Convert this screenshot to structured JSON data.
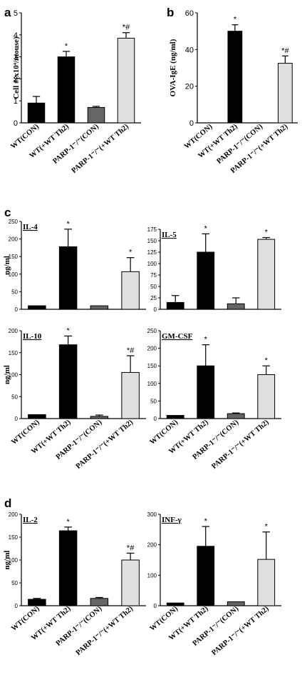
{
  "figure": {
    "panel_labels": [
      "a",
      "b",
      "c",
      "d"
    ]
  },
  "colors": {
    "WT(CON)": "#000000",
    "WT(+WT Th2)": "#000000",
    "PARP-1-/-(CON)": "#666666",
    "PARP-1-/-(+WT Th2)": "#e0e0e0"
  },
  "chart_data": [
    {
      "id": "a",
      "type": "bar",
      "title": "",
      "ylabel": "Cell #(x10⁴/mouse)",
      "xlabel": "",
      "ylim": [
        0,
        5
      ],
      "yticks": [
        0,
        1,
        2,
        3,
        4,
        5
      ],
      "grid": false,
      "legend": "none",
      "categories": [
        "WT(CON)",
        "WT(+WT Th2)",
        "PARP-1⁻/⁻(CON)",
        "PARP-1⁻/⁻(+WT Th2)"
      ],
      "values": [
        0.9,
        3.0,
        0.7,
        3.85
      ],
      "errors": [
        0.3,
        0.25,
        0.05,
        0.25
      ],
      "annotations": [
        "",
        "*",
        "",
        "*#"
      ]
    },
    {
      "id": "b",
      "type": "bar",
      "title": "",
      "ylabel": "OVA-IgE (ng/ml)",
      "xlabel": "",
      "ylim": [
        0,
        60
      ],
      "yticks": [
        0,
        20,
        40,
        60
      ],
      "grid": false,
      "legend": "none",
      "categories": [
        "WT(CON)",
        "WT(+WT Th2)",
        "PARP-1⁻/⁻(CON)",
        "PARP-1⁻/⁻(+WT Th2)"
      ],
      "values": [
        0,
        50,
        0,
        32.5
      ],
      "errors": [
        0,
        3.5,
        0,
        4
      ],
      "annotations": [
        "",
        "*",
        "",
        "*#"
      ]
    },
    {
      "id": "c1",
      "type": "bar",
      "title": "IL-4",
      "ylabel": "ng/ml",
      "xlabel": "",
      "ylim": [
        0,
        250
      ],
      "yticks": [
        0,
        50,
        100,
        150,
        200,
        250
      ],
      "grid": false,
      "legend": "none",
      "categories": [
        "WT(CON)",
        "WT(+WT Th2)",
        "PARP-1⁻/⁻(CON)",
        "PARP-1⁻/⁻(+WT Th2)"
      ],
      "values": [
        10,
        178,
        10,
        107
      ],
      "errors": [
        0,
        50,
        0,
        40
      ],
      "annotations": [
        "",
        "*",
        "",
        "*"
      ]
    },
    {
      "id": "c2",
      "type": "bar",
      "title": "IL-5",
      "ylabel": "",
      "xlabel": "",
      "ylim": [
        0,
        175
      ],
      "yticks": [
        0,
        25,
        50,
        75,
        100,
        125,
        150,
        175
      ],
      "grid": false,
      "legend": "none",
      "categories": [
        "WT(CON)",
        "WT(+WT Th2)",
        "PARP-1⁻/⁻(CON)",
        "PARP-1⁻/⁻(+WT Th2)"
      ],
      "values": [
        15,
        125,
        12,
        153
      ],
      "errors": [
        15,
        40,
        13,
        4
      ],
      "annotations": [
        "",
        "*",
        "",
        "*"
      ]
    },
    {
      "id": "c3",
      "type": "bar",
      "title": "IL-10",
      "ylabel": "ng/ml",
      "xlabel": "",
      "ylim": [
        0,
        200
      ],
      "yticks": [
        0,
        50,
        100,
        150,
        200
      ],
      "grid": false,
      "legend": "none",
      "categories": [
        "WT(CON)",
        "WT(+WT Th2)",
        "PARP-1⁻/⁻(CON)",
        "PARP-1⁻/⁻(+WT Th2)"
      ],
      "values": [
        9,
        168,
        5,
        105
      ],
      "errors": [
        0,
        20,
        3,
        38
      ],
      "annotations": [
        "",
        "*",
        "",
        "*#"
      ]
    },
    {
      "id": "c4",
      "type": "bar",
      "title": "GM-CSF",
      "ylabel": "",
      "xlabel": "",
      "ylim": [
        0,
        250
      ],
      "yticks": [
        0,
        50,
        100,
        150,
        200,
        250
      ],
      "grid": false,
      "legend": "none",
      "categories": [
        "WT(CON)",
        "WT(+WT Th2)",
        "PARP-1⁻/⁻(CON)",
        "PARP-1⁻/⁻(+WT Th2)"
      ],
      "values": [
        9,
        150,
        14,
        125
      ],
      "errors": [
        0,
        60,
        2,
        25
      ],
      "annotations": [
        "",
        "*",
        "",
        "*"
      ]
    },
    {
      "id": "d1",
      "type": "bar",
      "title": "IL-2",
      "ylabel": "ng/ml",
      "xlabel": "",
      "ylim": [
        0,
        200
      ],
      "yticks": [
        0,
        50,
        100,
        150,
        200
      ],
      "grid": false,
      "legend": "none",
      "categories": [
        "WT(CON)",
        "WT(+WT Th2)",
        "PARP-1⁻/⁻(CON)",
        "PARP-1⁻/⁻(+WT Th2)"
      ],
      "values": [
        14,
        164,
        16,
        100
      ],
      "errors": [
        2,
        8,
        2,
        15
      ],
      "annotations": [
        "",
        "*",
        "",
        "*#"
      ]
    },
    {
      "id": "d2",
      "type": "bar",
      "title": "INF-γ",
      "ylabel": "",
      "xlabel": "",
      "ylim": [
        0,
        300
      ],
      "yticks": [
        0,
        100,
        200,
        300
      ],
      "grid": false,
      "legend": "none",
      "categories": [
        "WT(CON)",
        "WT(+WT Th2)",
        "PARP-1⁻/⁻(CON)",
        "PARP-1⁻/⁻(+WT Th2)"
      ],
      "values": [
        9,
        195,
        13,
        152
      ],
      "errors": [
        0,
        65,
        0,
        90
      ],
      "annotations": [
        "",
        "*",
        "",
        "*"
      ]
    }
  ]
}
